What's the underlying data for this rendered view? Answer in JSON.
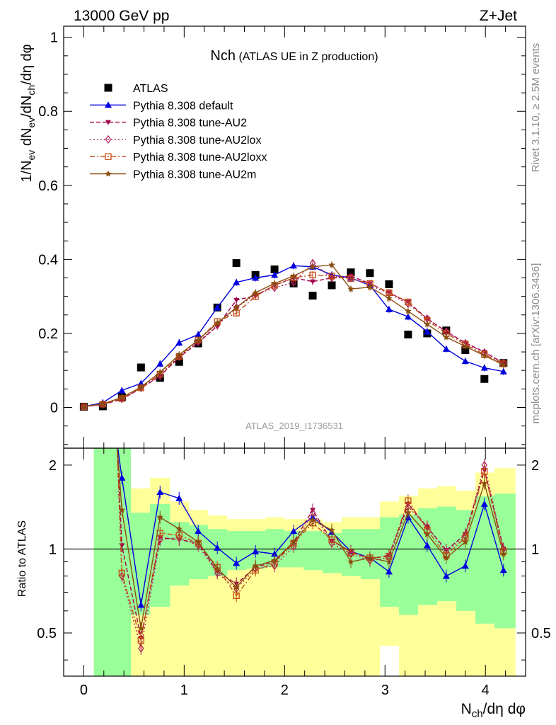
{
  "header": {
    "energy_label": "13000 GeV pp",
    "process_label": "Z+Jet",
    "title_main": "Nch",
    "title_sub": " (ATLAS UE in Z production)",
    "side_label_events": "Rivet 3.1.10, ≥ 2.5M events",
    "side_label_site": "mcplots.cern.ch [arXiv:1306.3436]",
    "analysis_id": "ATLAS_2019_I1736531"
  },
  "chart_data": [
    {
      "type": "scatter",
      "panel": "main",
      "xlim": [
        -0.2,
        4.4
      ],
      "ylim": [
        -0.11,
        1.03
      ],
      "ylabel": "1/N_ev dN_ev/dN_ch/dη dφ",
      "yticks": [
        0,
        0.2,
        0.4,
        0.6,
        0.8,
        1
      ],
      "ytick_labels": [
        "0",
        "0.2",
        "0.4",
        "0.6",
        "0.8",
        "1"
      ],
      "legend_position": "top-left",
      "x": [
        0.0,
        0.19,
        0.38,
        0.57,
        0.76,
        0.95,
        1.14,
        1.33,
        1.52,
        1.71,
        1.9,
        2.09,
        2.28,
        2.47,
        2.66,
        2.85,
        3.04,
        3.23,
        3.42,
        3.61,
        3.8,
        3.99,
        4.18
      ],
      "series": [
        {
          "name": "ATLAS",
          "color": "#000000",
          "marker": "square",
          "line": "none",
          "values": [
            0.002,
            0.003,
            0.028,
            0.108,
            0.08,
            0.123,
            0.173,
            0.27,
            0.39,
            0.358,
            0.373,
            0.335,
            0.302,
            0.33,
            0.365,
            0.363,
            0.333,
            0.197,
            0.2,
            0.208,
            0.155,
            0.077,
            0.12
          ]
        },
        {
          "name": "Pythia 8.308 default",
          "color": "#0000e0",
          "marker": "triangle-up",
          "line": "solid",
          "values": [
            0.002,
            0.013,
            0.046,
            0.065,
            0.118,
            0.175,
            0.197,
            0.27,
            0.338,
            0.35,
            0.358,
            0.383,
            0.38,
            0.358,
            0.35,
            0.33,
            0.265,
            0.245,
            0.205,
            0.158,
            0.125,
            0.107,
            0.097
          ]
        },
        {
          "name": "Pythia 8.308 tune-AU2",
          "color": "#a0004a",
          "marker": "triangle-down",
          "line": "dashed",
          "values": [
            0.002,
            0.008,
            0.022,
            0.052,
            0.085,
            0.135,
            0.175,
            0.22,
            0.29,
            0.302,
            0.33,
            0.35,
            0.34,
            0.35,
            0.355,
            0.335,
            0.31,
            0.285,
            0.24,
            0.205,
            0.175,
            0.15,
            0.12
          ]
        },
        {
          "name": "Pythia 8.308 tune-AU2lox",
          "color": "#b01e5a",
          "marker": "diamond",
          "line": "dotted",
          "values": [
            0.002,
            0.008,
            0.023,
            0.053,
            0.085,
            0.137,
            0.177,
            0.222,
            0.27,
            0.305,
            0.323,
            0.338,
            0.39,
            0.35,
            0.35,
            0.33,
            0.308,
            0.28,
            0.24,
            0.205,
            0.173,
            0.148,
            0.12
          ]
        },
        {
          "name": "Pythia 8.308 tune-AU2loxx",
          "color": "#c24a10",
          "marker": "square-open",
          "line": "dashdot",
          "values": [
            0.002,
            0.009,
            0.024,
            0.053,
            0.09,
            0.138,
            0.182,
            0.232,
            0.255,
            0.3,
            0.33,
            0.35,
            0.358,
            0.355,
            0.348,
            0.335,
            0.31,
            0.285,
            0.235,
            0.2,
            0.17,
            0.143,
            0.118
          ]
        },
        {
          "name": "Pythia 8.308 tune-AU2m",
          "color": "#8a4e10",
          "marker": "star",
          "line": "solid",
          "values": [
            0.002,
            0.01,
            0.027,
            0.055,
            0.095,
            0.142,
            0.182,
            0.228,
            0.27,
            0.31,
            0.335,
            0.355,
            0.38,
            0.385,
            0.32,
            0.325,
            0.295,
            0.26,
            0.225,
            0.19,
            0.165,
            0.14,
            0.115
          ]
        }
      ]
    },
    {
      "type": "line",
      "panel": "ratio",
      "xlabel": "N_ch/dη dφ",
      "ylabel": "Ratio to ATLAS",
      "xlim": [
        -0.2,
        4.4
      ],
      "ylim": [
        0.35,
        2.3
      ],
      "xticks": [
        0,
        1,
        2,
        3,
        4
      ],
      "xtick_labels": [
        "0",
        "1",
        "2",
        "3",
        "4"
      ],
      "yticks": [
        0.5,
        1,
        2
      ],
      "ytick_labels": [
        "0.5",
        "1",
        "2"
      ],
      "reference_line": 1,
      "band_edges": [
        0.1,
        0.3,
        0.47,
        0.66,
        0.86,
        1.05,
        1.24,
        1.43,
        1.62,
        1.81,
        2.0,
        2.19,
        2.38,
        2.57,
        2.76,
        2.95,
        3.14,
        3.33,
        3.52,
        3.71,
        3.9,
        4.09,
        4.3
      ],
      "band_outer": {
        "color": "#ffff99",
        "low": [
          0.35,
          0.35,
          0.35,
          0.35,
          0.35,
          0.35,
          0.35,
          0.35,
          0.35,
          0.35,
          0.35,
          0.35,
          0.35,
          0.35,
          0.35,
          0.45,
          0.35,
          0.35,
          0.35,
          0.35,
          0.35,
          0.35
        ],
        "high": [
          2.3,
          2.3,
          1.65,
          1.8,
          1.48,
          1.38,
          1.32,
          1.28,
          1.28,
          1.3,
          1.28,
          1.28,
          1.25,
          1.3,
          1.3,
          1.48,
          1.55,
          1.65,
          1.68,
          1.62,
          1.88,
          1.95
        ]
      },
      "band_inner": {
        "color": "#99ff99",
        "low": [
          0.35,
          0.35,
          0.58,
          0.62,
          0.74,
          0.78,
          0.8,
          0.84,
          0.85,
          0.86,
          0.86,
          0.84,
          0.82,
          0.8,
          0.78,
          0.62,
          0.58,
          0.63,
          0.65,
          0.6,
          0.54,
          0.52
        ],
        "high": [
          2.3,
          2.3,
          1.35,
          1.45,
          1.25,
          1.22,
          1.18,
          1.16,
          1.16,
          1.18,
          1.16,
          1.16,
          1.14,
          1.18,
          1.18,
          1.3,
          1.33,
          1.4,
          1.42,
          1.38,
          1.55,
          1.58
        ]
      },
      "x": [
        0.38,
        0.57,
        0.76,
        0.95,
        1.14,
        1.33,
        1.52,
        1.71,
        1.9,
        2.09,
        2.28,
        2.47,
        2.66,
        2.85,
        3.04,
        3.23,
        3.42,
        3.61,
        3.8,
        3.99,
        4.18
      ],
      "series": [
        {
          "name": "Pythia 8.308 default",
          "color": "#0000e0",
          "marker": "triangle-up",
          "line": "solid",
          "values": [
            1.8,
            0.63,
            1.6,
            1.52,
            1.16,
            1.01,
            0.89,
            0.98,
            0.96,
            1.16,
            1.3,
            1.15,
            0.98,
            0.93,
            0.83,
            1.3,
            1.03,
            0.8,
            0.87,
            1.45,
            0.84
          ]
        },
        {
          "name": "Pythia 8.308 tune-AU2",
          "color": "#a0004a",
          "marker": "triangle-down",
          "line": "dashed",
          "values": [
            1.03,
            0.48,
            1.1,
            1.08,
            1.05,
            0.83,
            0.75,
            0.86,
            0.9,
            1.06,
            1.38,
            1.07,
            0.98,
            0.92,
            0.95,
            1.45,
            1.2,
            0.99,
            1.13,
            1.92,
            1.0
          ]
        },
        {
          "name": "Pythia 8.308 tune-AU2lox",
          "color": "#b01e5a",
          "marker": "diamond",
          "line": "dotted",
          "values": [
            0.8,
            0.44,
            1.08,
            1.1,
            1.03,
            0.82,
            0.72,
            0.85,
            0.87,
            1.02,
            1.35,
            1.05,
            0.96,
            0.91,
            0.93,
            1.42,
            1.2,
            0.98,
            1.11,
            2.0,
            1.0
          ]
        },
        {
          "name": "Pythia 8.308 tune-AU2loxx",
          "color": "#c24a10",
          "marker": "square-open",
          "line": "dashdot",
          "values": [
            0.82,
            0.47,
            1.14,
            1.12,
            1.05,
            0.86,
            0.68,
            0.84,
            0.89,
            1.05,
            1.24,
            1.08,
            0.97,
            0.93,
            0.94,
            1.49,
            1.17,
            0.95,
            1.1,
            1.9,
            0.98
          ]
        },
        {
          "name": "Pythia 8.308 tune-AU2m",
          "color": "#8a4e10",
          "marker": "star",
          "line": "solid",
          "values": [
            1.38,
            0.52,
            1.3,
            1.18,
            1.06,
            0.85,
            0.73,
            0.87,
            0.91,
            1.06,
            1.27,
            1.17,
            0.9,
            0.93,
            0.9,
            1.35,
            1.13,
            0.93,
            1.06,
            1.72,
            0.96
          ]
        }
      ]
    }
  ]
}
